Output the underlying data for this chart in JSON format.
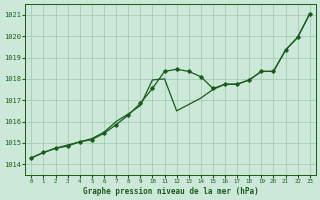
{
  "xlabel": "Graphe pression niveau de la mer (hPa)",
  "background_color": "#cce8d8",
  "grid_color": "#9ec8b0",
  "line_color": "#1a5c1a",
  "x_ticks": [
    0,
    1,
    2,
    3,
    4,
    5,
    6,
    7,
    8,
    9,
    10,
    11,
    12,
    13,
    14,
    15,
    16,
    17,
    18,
    19,
    20,
    21,
    22,
    23
  ],
  "ylim": [
    1013.5,
    1021.5
  ],
  "xlim": [
    -0.5,
    23.5
  ],
  "yticks": [
    1014,
    1015,
    1016,
    1017,
    1018,
    1019,
    1020,
    1021
  ],
  "line1_x": [
    0,
    1,
    2,
    3,
    4,
    5,
    6,
    7,
    8,
    9,
    10,
    11,
    12,
    13,
    14,
    15,
    16,
    17,
    18,
    19,
    20,
    21,
    22,
    23
  ],
  "line1_y": [
    1014.3,
    1014.55,
    1014.75,
    1014.85,
    1015.05,
    1015.15,
    1015.45,
    1015.85,
    1016.3,
    1016.85,
    1017.55,
    1018.35,
    1018.45,
    1018.35,
    1018.1,
    1017.55,
    1017.75,
    1017.75,
    1017.95,
    1018.35,
    1018.35,
    1019.35,
    1019.95,
    1021.05
  ],
  "line2_x": [
    0,
    1,
    2,
    3,
    4,
    5,
    6,
    7,
    8,
    9,
    10,
    11,
    12,
    13,
    14,
    15,
    16,
    17,
    18,
    19,
    20,
    21,
    22,
    23
  ],
  "line2_y": [
    1014.3,
    1014.55,
    1014.75,
    1014.9,
    1015.05,
    1015.2,
    1015.5,
    1016.0,
    1016.35,
    1016.75,
    1017.95,
    1018.0,
    1016.5,
    1016.8,
    1017.1,
    1017.5,
    1017.75,
    1017.75,
    1017.95,
    1018.35,
    1018.35,
    1019.35,
    1019.95,
    1021.05
  ]
}
